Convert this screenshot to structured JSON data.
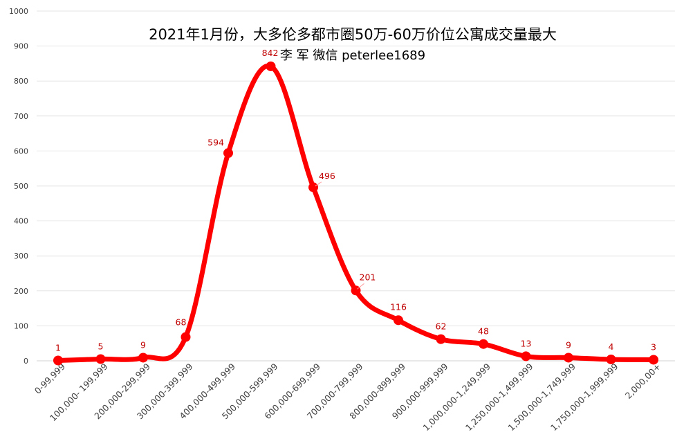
{
  "chart_data": {
    "type": "line",
    "title": "2021年1月份，大多伦多都市圈50万-60万价位公寓成交量最大",
    "subtitle": "李 军  微信  peterlee1689",
    "categories": [
      "0-99,999",
      "100,000- 199,999",
      "200,000-299,999",
      "300,000-399,999",
      "400,000-499,999",
      "500,000-599,999",
      "600,000-699,999",
      "700,000-799,999",
      "800,000-899,999",
      "900,000-999,999",
      "1,000,000-1,249,999",
      "1,250,000-1,499,999",
      "1,500,000-1,749,999",
      "1,750,000-1,999,999",
      "2,000,00+"
    ],
    "series": [
      {
        "values": [
          1,
          5,
          9,
          68,
          594,
          842,
          496,
          201,
          116,
          62,
          48,
          13,
          9,
          4,
          3
        ]
      }
    ],
    "ylim": [
      0,
      1000
    ],
    "yticks": [
      0,
      100,
      200,
      300,
      400,
      500,
      600,
      700,
      800,
      900,
      1000
    ],
    "grid": true,
    "smooth": true,
    "color": "#ff0000",
    "label_color": "#c00000"
  }
}
